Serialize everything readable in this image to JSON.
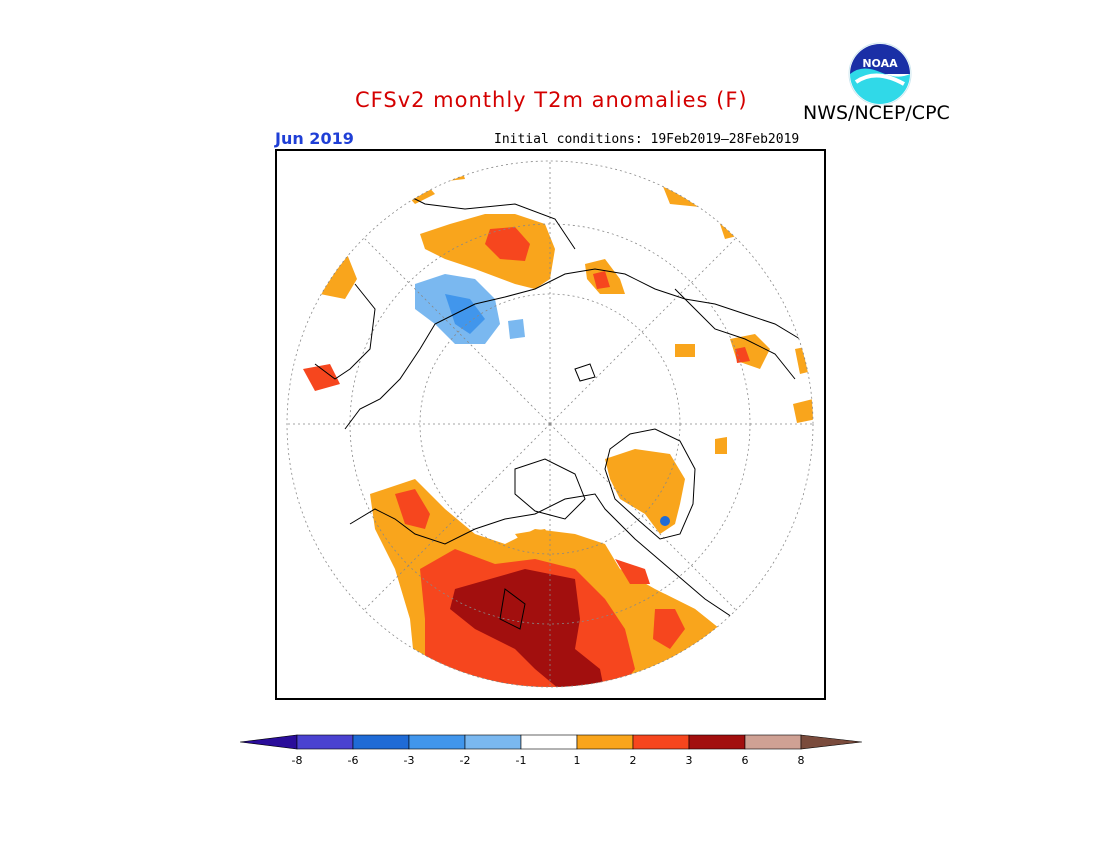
{
  "header": {
    "title": "CFSv2 monthly T2m anomalies (F)",
    "org": "NWS/NCEP/CPC",
    "logo_text": "NOAA",
    "month": "Jun 2019",
    "initial_conditions": "Initial conditions: 19Feb2019–28Feb2019"
  },
  "colorbar": {
    "labels": [
      "-8",
      "-6",
      "-3",
      "-2",
      "-1",
      "1",
      "2",
      "3",
      "6",
      "8"
    ],
    "colors": [
      "#2a0d9a",
      "#4a42d0",
      "#1f6bd6",
      "#4196ec",
      "#7ab8f0",
      "#ffffff",
      "#f9a51c",
      "#f6461e",
      "#a20f0e",
      "#cfa194",
      "#7a4b3c"
    ]
  },
  "map": {
    "projection": "north polar stereographic",
    "background": "#ffffff",
    "coastline_color": "#000000",
    "graticule_color": "#888888"
  }
}
